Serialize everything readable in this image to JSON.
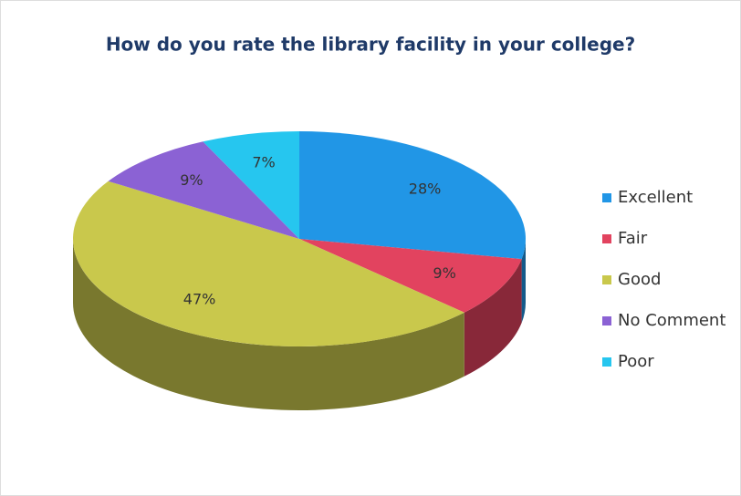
{
  "chart_data": {
    "type": "pie3d",
    "title": "How do you rate the library facility in your college?",
    "categories": [
      "Excellent",
      "Fair",
      "Good",
      "No Comment",
      "Poor"
    ],
    "values": [
      28,
      9,
      47,
      9,
      7
    ],
    "value_labels": [
      "28%",
      "9%",
      "47%",
      "9%",
      "7%"
    ],
    "colors": [
      "#2196e6",
      "#e2435f",
      "#c9c84c",
      "#8b62d4",
      "#26c6ef"
    ],
    "legend": "right"
  }
}
